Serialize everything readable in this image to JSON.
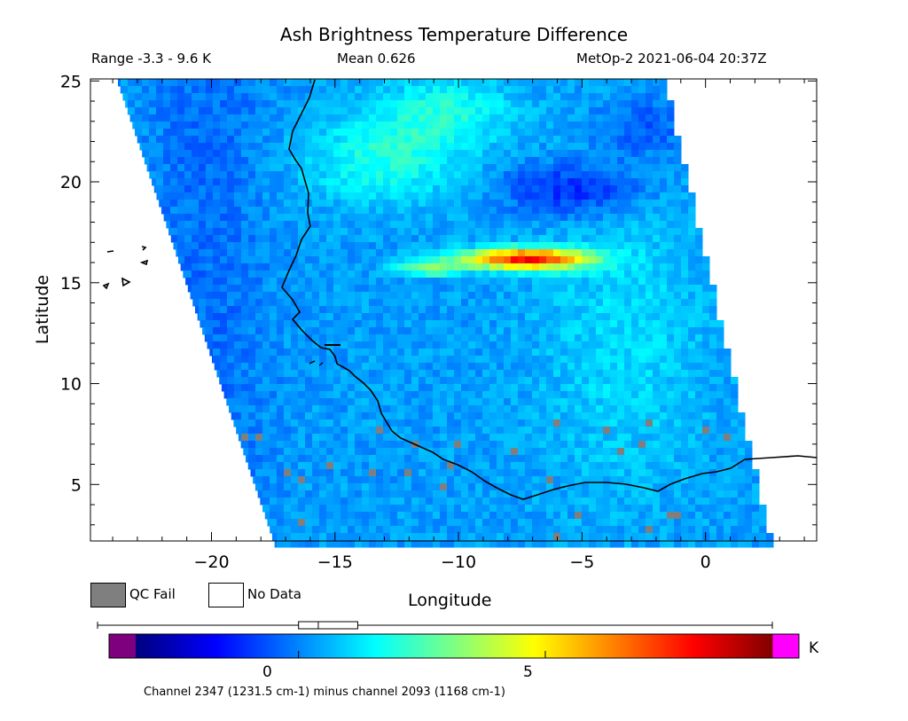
{
  "title": "Ash Brightness Temperature Difference",
  "range_text": "Range -3.3 - 9.6 K",
  "mean_text": "Mean 0.626",
  "satellite_time": "MetOp-2 2021-06-04 20:37Z",
  "x_axis": {
    "label": "Longitude",
    "ticks": [
      -20,
      -15,
      -10,
      -5,
      0
    ],
    "range": [
      -24.9,
      4.5
    ]
  },
  "y_axis": {
    "label": "Latitude",
    "ticks": [
      5,
      10,
      15,
      20,
      25
    ],
    "range": [
      2.2,
      25.1
    ]
  },
  "legend": {
    "qc_fail": "QC Fail",
    "no_data": "No Data"
  },
  "colorbar": {
    "unit": "K",
    "ticks": [
      {
        "value": 0,
        "label": "0"
      },
      {
        "value": 5,
        "label": "5"
      }
    ],
    "range": [
      -3.3,
      9.6
    ],
    "box": {
      "q1": 0.0,
      "median": 0.4,
      "q3": 1.2,
      "min": -3.3,
      "max": 9.6
    },
    "colors": [
      "#000080",
      "#0000ff",
      "#0080ff",
      "#00ffff",
      "#80ff80",
      "#ffff00",
      "#ff8000",
      "#ff0000",
      "#800000"
    ],
    "under_color": "#7f007f",
    "over_color": "#ff00ff"
  },
  "qc_color": "#7f7f7f",
  "caption": "Channel 2347 (1231.5 cm-1) minus channel 2093 (1168 cm-1)"
}
